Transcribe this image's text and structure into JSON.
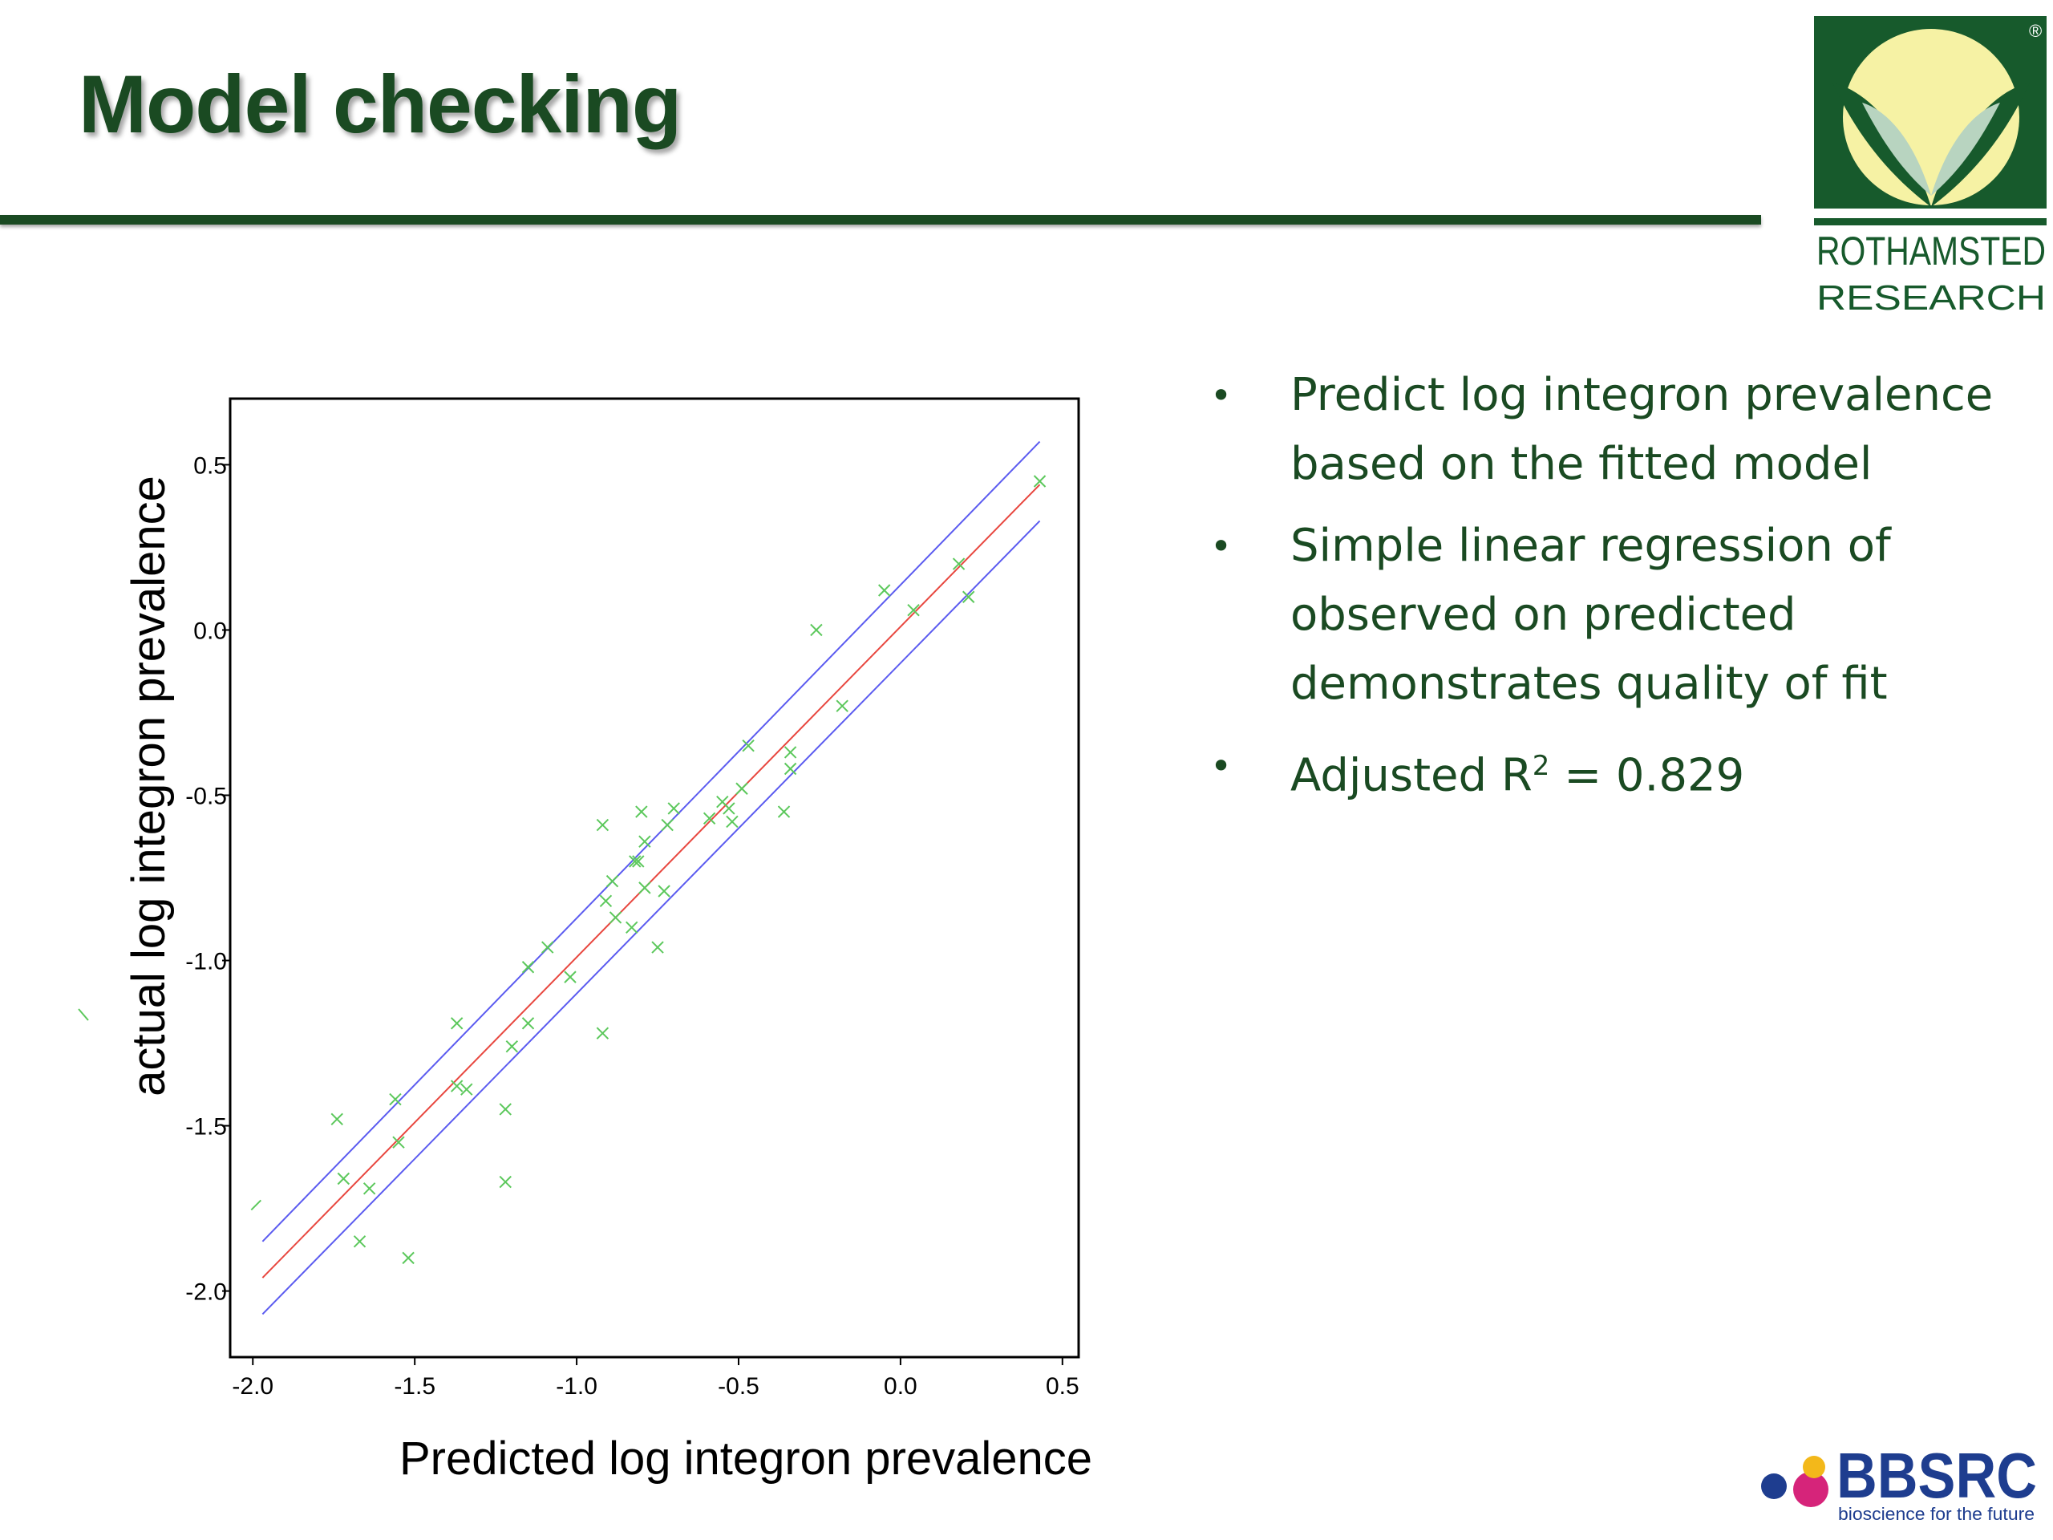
{
  "slide": {
    "title": "Model checking",
    "bullets": [
      "Predict log integron prevalence based on the fitted model",
      "Simple linear regression of observed on predicted demonstrates quality of fit",
      "Adjusted R"
    ],
    "r2_superscript": "2",
    "r2_value": " = 0.829"
  },
  "logos": {
    "rothamsted_line1": "ROTHAMSTED",
    "rothamsted_line2": "RESEARCH",
    "registered_mark": "®",
    "bbsrc_name": "BBSRC",
    "bbsrc_tagline": "bioscience for the future"
  },
  "colors": {
    "title_green": "#1a4a22",
    "fit_line": "#e8473f",
    "conf_band": "#5b5bf0",
    "points": "#5cc85c"
  },
  "chart_data": {
    "type": "scatter",
    "title": "",
    "xlabel": "Predicted  log integron prevalence",
    "ylabel": "actual log integron prevalence",
    "xlim": [
      -2.07,
      0.55
    ],
    "ylim": [
      -2.2,
      0.7
    ],
    "xticks": [
      "-2.0",
      "-1.5",
      "-1.0",
      "-0.5",
      "0.0",
      "0.5"
    ],
    "yticks": [
      "-2.0",
      "-1.5",
      "-1.0",
      "-0.5",
      "0.0",
      "0.5"
    ],
    "points": [
      {
        "x": -1.74,
        "y": -1.48
      },
      {
        "x": -1.72,
        "y": -1.66
      },
      {
        "x": -1.67,
        "y": -1.85
      },
      {
        "x": -1.64,
        "y": -1.69
      },
      {
        "x": -1.56,
        "y": -1.42
      },
      {
        "x": -1.55,
        "y": -1.55
      },
      {
        "x": -1.52,
        "y": -1.9
      },
      {
        "x": -1.37,
        "y": -1.19
      },
      {
        "x": -1.37,
        "y": -1.38
      },
      {
        "x": -1.34,
        "y": -1.39
      },
      {
        "x": -1.22,
        "y": -1.45
      },
      {
        "x": -1.22,
        "y": -1.67
      },
      {
        "x": -1.2,
        "y": -1.26
      },
      {
        "x": -1.15,
        "y": -1.19
      },
      {
        "x": -1.15,
        "y": -1.02
      },
      {
        "x": -1.09,
        "y": -0.96
      },
      {
        "x": -1.02,
        "y": -1.05
      },
      {
        "x": -0.92,
        "y": -0.59
      },
      {
        "x": -0.92,
        "y": -1.22
      },
      {
        "x": -0.91,
        "y": -0.82
      },
      {
        "x": -0.89,
        "y": -0.76
      },
      {
        "x": -0.88,
        "y": -0.87
      },
      {
        "x": -0.83,
        "y": -0.9
      },
      {
        "x": -0.82,
        "y": -0.7
      },
      {
        "x": -0.81,
        "y": -0.7
      },
      {
        "x": -0.8,
        "y": -0.55
      },
      {
        "x": -0.79,
        "y": -0.64
      },
      {
        "x": -0.79,
        "y": -0.78
      },
      {
        "x": -0.75,
        "y": -0.96
      },
      {
        "x": -0.73,
        "y": -0.79
      },
      {
        "x": -0.72,
        "y": -0.59
      },
      {
        "x": -0.7,
        "y": -0.54
      },
      {
        "x": -0.59,
        "y": -0.57
      },
      {
        "x": -0.55,
        "y": -0.52
      },
      {
        "x": -0.53,
        "y": -0.54
      },
      {
        "x": -0.52,
        "y": -0.58
      },
      {
        "x": -0.49,
        "y": -0.48
      },
      {
        "x": -0.47,
        "y": -0.35
      },
      {
        "x": -0.36,
        "y": -0.55
      },
      {
        "x": -0.34,
        "y": -0.42
      },
      {
        "x": -0.34,
        "y": -0.37
      },
      {
        "x": -0.26,
        "y": 0.0
      },
      {
        "x": -0.18,
        "y": -0.23
      },
      {
        "x": -0.05,
        "y": 0.12
      },
      {
        "x": 0.04,
        "y": 0.06
      },
      {
        "x": 0.18,
        "y": 0.2
      },
      {
        "x": 0.21,
        "y": 0.1
      },
      {
        "x": 0.43,
        "y": 0.45
      }
    ],
    "fit_line": {
      "x": [
        -1.97,
        0.43
      ],
      "y": [
        -1.96,
        0.44
      ]
    },
    "band_upper": {
      "x": [
        -1.97,
        0.43
      ],
      "y": [
        -1.85,
        0.57
      ]
    },
    "band_lower": {
      "x": [
        -1.97,
        0.43
      ],
      "y": [
        -2.07,
        0.33
      ]
    }
  }
}
